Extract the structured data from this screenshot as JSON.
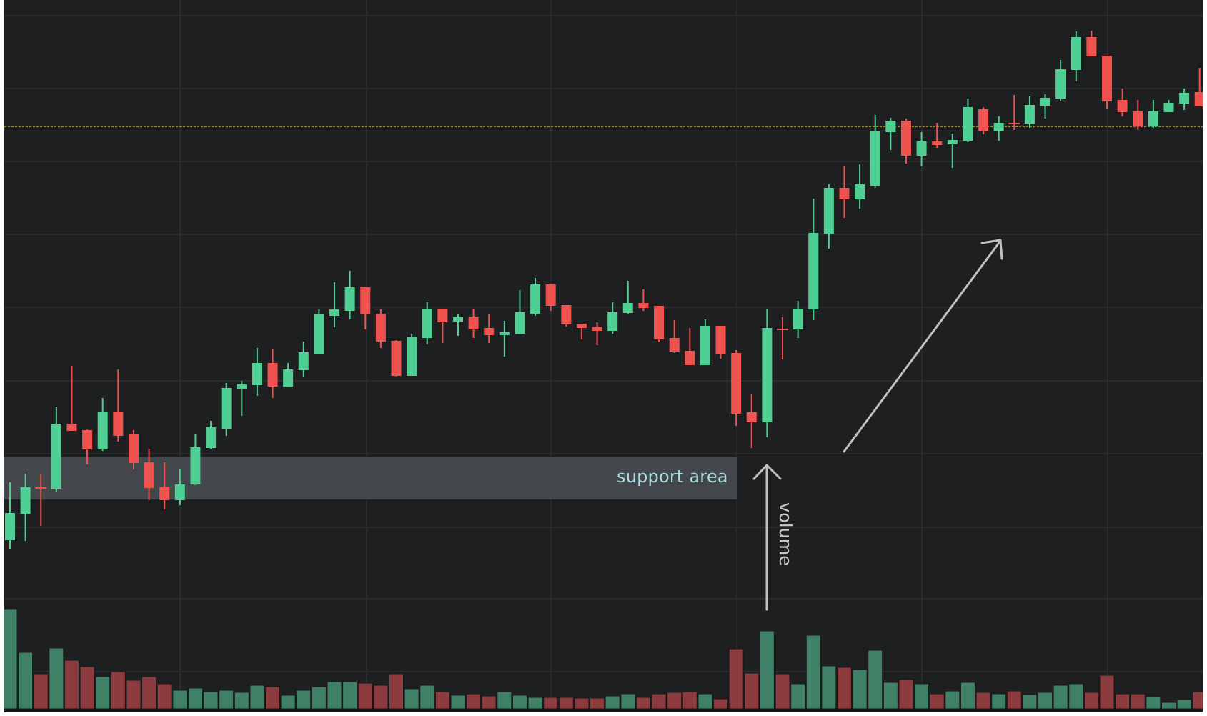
{
  "colors": {
    "background": "#1e1f21",
    "grid": "#2a2b2e",
    "up": "#4fcf94",
    "down": "#ef5350",
    "volume_up": "#3f8066",
    "volume_down": "#8c3b3f",
    "support_zone": "#43464b",
    "resistance_line": "#c8b23a",
    "annotation": "#bfc0c2",
    "support_text": "#a9dde0"
  },
  "annotations": {
    "support_label": "support area",
    "volume_label": "volume"
  },
  "chart_data": {
    "type": "candlestick",
    "title": "",
    "xlabel": "",
    "ylabel": "",
    "grid": true,
    "legend": null,
    "ylim": [
      0,
      100
    ],
    "support_zone": [
      30.1,
      36.0
    ],
    "resistance_level": 82.3,
    "annotations": [
      {
        "type": "zone",
        "label": "support area",
        "from": 30.1,
        "to": 36.0,
        "x_end_index": 47
      },
      {
        "type": "arrow",
        "label": "volume",
        "direction": "up",
        "at_index": 50
      },
      {
        "type": "arrow",
        "label": "",
        "direction": "up-right",
        "from_index": 54,
        "to_index": 64
      },
      {
        "type": "hline",
        "label": "",
        "style": "dashed",
        "value": 82.3
      }
    ],
    "candles": [
      {
        "o": 24.4,
        "h": 32.5,
        "l": 23.2,
        "c": 28.2
      },
      {
        "o": 28.1,
        "h": 33.7,
        "l": 24.3,
        "c": 31.8
      },
      {
        "o": 31.8,
        "h": 33.6,
        "l": 26.4,
        "c": 31.7
      },
      {
        "o": 31.6,
        "h": 43.1,
        "l": 31.2,
        "c": 40.7
      },
      {
        "o": 40.7,
        "h": 48.8,
        "l": 39.7,
        "c": 39.7
      },
      {
        "o": 39.8,
        "h": 39.9,
        "l": 35.0,
        "c": 37.1
      },
      {
        "o": 37.1,
        "h": 44.3,
        "l": 36.9,
        "c": 42.4
      },
      {
        "o": 42.4,
        "h": 48.3,
        "l": 38.2,
        "c": 39.0
      },
      {
        "o": 39.2,
        "h": 39.8,
        "l": 34.3,
        "c": 35.2
      },
      {
        "o": 35.3,
        "h": 37.2,
        "l": 30.0,
        "c": 31.7
      },
      {
        "o": 31.8,
        "h": 35.3,
        "l": 28.7,
        "c": 30.0
      },
      {
        "o": 30.0,
        "h": 34.4,
        "l": 29.3,
        "c": 32.2
      },
      {
        "o": 32.2,
        "h": 39.2,
        "l": 32.1,
        "c": 37.4
      },
      {
        "o": 37.3,
        "h": 41.1,
        "l": 37.2,
        "c": 40.2
      },
      {
        "o": 40.0,
        "h": 46.4,
        "l": 39.0,
        "c": 45.7
      },
      {
        "o": 45.6,
        "h": 46.7,
        "l": 41.8,
        "c": 46.2
      },
      {
        "o": 46.1,
        "h": 51.3,
        "l": 44.6,
        "c": 49.2
      },
      {
        "o": 49.2,
        "h": 51.2,
        "l": 44.3,
        "c": 45.9
      },
      {
        "o": 45.9,
        "h": 49.2,
        "l": 45.9,
        "c": 48.3
      },
      {
        "o": 48.2,
        "h": 52.2,
        "l": 47.2,
        "c": 50.7
      },
      {
        "o": 50.4,
        "h": 56.7,
        "l": 50.4,
        "c": 56.0
      },
      {
        "o": 55.8,
        "h": 60.5,
        "l": 54.2,
        "c": 56.7
      },
      {
        "o": 56.5,
        "h": 62.1,
        "l": 55.3,
        "c": 59.8
      },
      {
        "o": 59.8,
        "h": 59.8,
        "l": 53.9,
        "c": 56.0
      },
      {
        "o": 56.1,
        "h": 56.7,
        "l": 51.3,
        "c": 52.2
      },
      {
        "o": 52.3,
        "h": 52.4,
        "l": 47.3,
        "c": 47.4
      },
      {
        "o": 47.4,
        "h": 53.3,
        "l": 47.4,
        "c": 52.8
      },
      {
        "o": 52.7,
        "h": 57.7,
        "l": 51.8,
        "c": 56.8
      },
      {
        "o": 56.8,
        "h": 56.8,
        "l": 52.0,
        "c": 54.9
      },
      {
        "o": 55.0,
        "h": 56.0,
        "l": 53.0,
        "c": 55.6
      },
      {
        "o": 55.6,
        "h": 56.8,
        "l": 52.7,
        "c": 53.9
      },
      {
        "o": 54.1,
        "h": 56.0,
        "l": 52.0,
        "c": 53.1
      },
      {
        "o": 53.1,
        "h": 55.1,
        "l": 50.1,
        "c": 53.5
      },
      {
        "o": 53.3,
        "h": 59.4,
        "l": 53.3,
        "c": 56.3
      },
      {
        "o": 56.1,
        "h": 61.1,
        "l": 55.8,
        "c": 60.2
      },
      {
        "o": 60.2,
        "h": 60.2,
        "l": 56.5,
        "c": 57.2
      },
      {
        "o": 57.3,
        "h": 57.3,
        "l": 54.3,
        "c": 54.6
      },
      {
        "o": 54.7,
        "h": 54.7,
        "l": 52.5,
        "c": 54.1
      },
      {
        "o": 54.3,
        "h": 54.9,
        "l": 51.7,
        "c": 53.7
      },
      {
        "o": 53.7,
        "h": 57.7,
        "l": 53.3,
        "c": 56.3
      },
      {
        "o": 56.2,
        "h": 60.7,
        "l": 56.0,
        "c": 57.6
      },
      {
        "o": 57.6,
        "h": 59.5,
        "l": 56.5,
        "c": 56.9
      },
      {
        "o": 57.2,
        "h": 57.2,
        "l": 52.1,
        "c": 52.5
      },
      {
        "o": 52.7,
        "h": 55.2,
        "l": 50.6,
        "c": 50.8
      },
      {
        "o": 50.9,
        "h": 54.1,
        "l": 48.9,
        "c": 48.9
      },
      {
        "o": 48.9,
        "h": 55.3,
        "l": 48.9,
        "c": 54.4
      },
      {
        "o": 54.4,
        "h": 54.4,
        "l": 49.8,
        "c": 50.4
      },
      {
        "o": 50.6,
        "h": 51.0,
        "l": 40.4,
        "c": 42.1
      },
      {
        "o": 42.3,
        "h": 44.8,
        "l": 37.3,
        "c": 40.9
      },
      {
        "o": 40.9,
        "h": 56.8,
        "l": 38.8,
        "c": 54.1
      },
      {
        "o": 54.0,
        "h": 55.6,
        "l": 49.7,
        "c": 53.9
      },
      {
        "o": 53.9,
        "h": 57.9,
        "l": 52.7,
        "c": 56.8
      },
      {
        "o": 56.7,
        "h": 72.2,
        "l": 55.2,
        "c": 67.4
      },
      {
        "o": 67.3,
        "h": 74.2,
        "l": 65.2,
        "c": 73.7
      },
      {
        "o": 73.7,
        "h": 76.8,
        "l": 69.5,
        "c": 72.1
      },
      {
        "o": 72.1,
        "h": 77.0,
        "l": 70.8,
        "c": 74.2
      },
      {
        "o": 74.0,
        "h": 83.9,
        "l": 73.7,
        "c": 81.7
      },
      {
        "o": 81.5,
        "h": 83.5,
        "l": 79.0,
        "c": 83.1
      },
      {
        "o": 83.1,
        "h": 83.4,
        "l": 77.1,
        "c": 78.2
      },
      {
        "o": 78.2,
        "h": 81.5,
        "l": 76.7,
        "c": 80.2
      },
      {
        "o": 80.2,
        "h": 82.8,
        "l": 79.3,
        "c": 79.7
      },
      {
        "o": 79.8,
        "h": 81.3,
        "l": 76.5,
        "c": 80.4
      },
      {
        "o": 80.3,
        "h": 86.2,
        "l": 80.1,
        "c": 85.0
      },
      {
        "o": 84.7,
        "h": 85.0,
        "l": 81.2,
        "c": 81.7
      },
      {
        "o": 81.7,
        "h": 83.7,
        "l": 80.3,
        "c": 82.8
      },
      {
        "o": 82.8,
        "h": 86.7,
        "l": 81.8,
        "c": 82.7
      },
      {
        "o": 82.7,
        "h": 86.5,
        "l": 82.1,
        "c": 85.3
      },
      {
        "o": 85.2,
        "h": 86.8,
        "l": 83.4,
        "c": 86.3
      },
      {
        "o": 86.2,
        "h": 91.6,
        "l": 85.8,
        "c": 90.3
      },
      {
        "o": 90.2,
        "h": 95.6,
        "l": 88.6,
        "c": 94.8
      },
      {
        "o": 94.8,
        "h": 95.7,
        "l": 92.1,
        "c": 92.1
      },
      {
        "o": 92.2,
        "h": 92.2,
        "l": 84.8,
        "c": 85.8
      },
      {
        "o": 86.0,
        "h": 87.6,
        "l": 83.7,
        "c": 84.3
      },
      {
        "o": 84.4,
        "h": 86.0,
        "l": 81.8,
        "c": 82.3
      },
      {
        "o": 82.3,
        "h": 86.0,
        "l": 82.1,
        "c": 84.4
      },
      {
        "o": 84.3,
        "h": 86.0,
        "l": 84.3,
        "c": 85.6
      },
      {
        "o": 85.5,
        "h": 87.6,
        "l": 84.6,
        "c": 87.0
      },
      {
        "o": 87.1,
        "h": 90.5,
        "l": 85.1,
        "c": 85.1
      }
    ],
    "volume": [
      140,
      79,
      49,
      85,
      68,
      59,
      45,
      52,
      40,
      45,
      35,
      26,
      29,
      24,
      26,
      23,
      33,
      31,
      19,
      26,
      31,
      38,
      38,
      36,
      33,
      49,
      28,
      33,
      24,
      19,
      21,
      18,
      24,
      19,
      16,
      16,
      16,
      15,
      15,
      18,
      21,
      16,
      21,
      23,
      24,
      21,
      14,
      84,
      50,
      109,
      49,
      35,
      103,
      60,
      58,
      55,
      82,
      37,
      41,
      35,
      21,
      25,
      37,
      23,
      21,
      25,
      20,
      23,
      33,
      35,
      23,
      47,
      21,
      21,
      17,
      9,
      13,
      24
    ]
  }
}
